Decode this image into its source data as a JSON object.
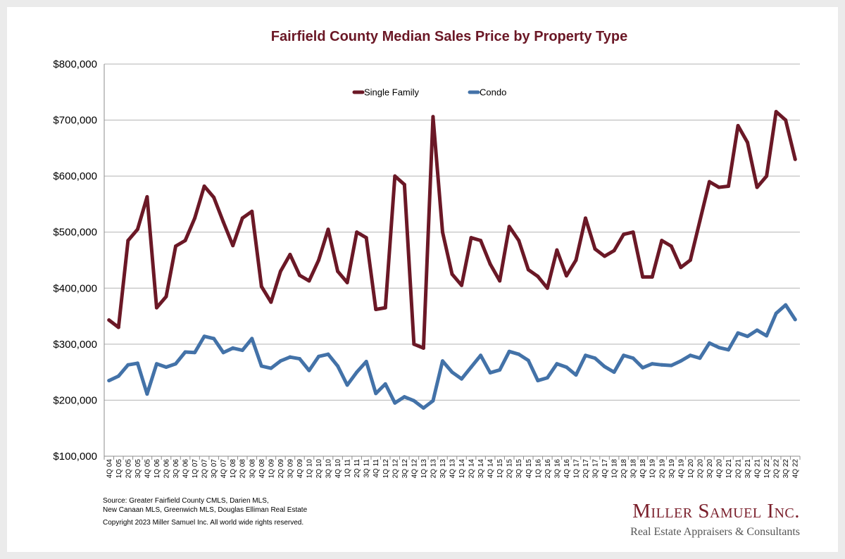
{
  "chart_data": {
    "type": "line",
    "title": "Fairfield County Median Sales Price by Property Type",
    "xlabel": "",
    "ylabel": "",
    "ylim": [
      100000,
      800000
    ],
    "yticks": [
      100000,
      200000,
      300000,
      400000,
      500000,
      600000,
      700000,
      800000
    ],
    "ytick_labels": [
      "$100,000",
      "$200,000",
      "$300,000",
      "$400,000",
      "$500,000",
      "$600,000",
      "$700,000",
      "$800,000"
    ],
    "grid": "horizontal",
    "legend": "top-center",
    "categories": [
      "4Q 04",
      "1Q 05",
      "2Q 05",
      "3Q 05",
      "4Q 05",
      "1Q 06",
      "2Q 06",
      "3Q 06",
      "4Q 06",
      "1Q 07",
      "2Q 07",
      "3Q 07",
      "4Q 07",
      "1Q 08",
      "2Q 08",
      "3Q 08",
      "4Q 08",
      "1Q 09",
      "2Q 09",
      "3Q 09",
      "4Q 09",
      "1Q 10",
      "2Q 10",
      "3Q 10",
      "4Q 10",
      "1Q 11",
      "2Q 11",
      "3Q 11",
      "4Q 11",
      "1Q 12",
      "2Q 12",
      "3Q 12",
      "4Q 12",
      "1Q 13",
      "2Q 13",
      "3Q 13",
      "4Q 13",
      "1Q 14",
      "2Q 14",
      "3Q 14",
      "4Q 14",
      "1Q 15",
      "2Q 15",
      "3Q 15",
      "4Q 15",
      "1Q 16",
      "2Q 16",
      "3Q 16",
      "4Q 16",
      "1Q 17",
      "2Q 17",
      "3Q 17",
      "4Q 17",
      "1Q 18",
      "2Q 18",
      "3Q 18",
      "4Q 18",
      "1Q 19",
      "2Q 19",
      "3Q 19",
      "4Q 19",
      "1Q 20",
      "2Q 20",
      "3Q 20",
      "4Q 20",
      "1Q 21",
      "2Q 21",
      "3Q 21",
      "4Q 21",
      "1Q 22",
      "2Q 22",
      "3Q 22",
      "4Q 22"
    ],
    "series": [
      {
        "name": "Single Family",
        "color": "#6b1826",
        "values": [
          343000,
          330000,
          485000,
          505000,
          563000,
          365000,
          385000,
          475000,
          485000,
          525000,
          582000,
          562000,
          518000,
          476000,
          525000,
          537000,
          403000,
          375000,
          430000,
          460000,
          423000,
          413000,
          450000,
          505000,
          430000,
          410000,
          500000,
          490000,
          362000,
          365000,
          600000,
          585000,
          300000,
          293000,
          706000,
          500000,
          425000,
          405000,
          490000,
          485000,
          443000,
          413000,
          510000,
          485000,
          433000,
          421000,
          400000,
          468000,
          422000,
          450000,
          525000,
          470000,
          457000,
          467000,
          496000,
          500000,
          420000,
          420000,
          485000,
          475000,
          437000,
          450000,
          520000,
          590000,
          580000,
          582000,
          690000,
          660000,
          580000,
          600000,
          715000,
          700000,
          630000
        ]
      },
      {
        "name": "Condo",
        "color": "#4372a8",
        "values": [
          235000,
          243000,
          263000,
          266000,
          211000,
          265000,
          259000,
          265000,
          286000,
          285000,
          314000,
          310000,
          285000,
          293000,
          289000,
          310000,
          261000,
          257000,
          270000,
          277000,
          274000,
          253000,
          278000,
          282000,
          261000,
          227000,
          250000,
          269000,
          212000,
          229000,
          195000,
          206000,
          199000,
          186000,
          199000,
          270000,
          250000,
          238000,
          259000,
          280000,
          249000,
          254000,
          287000,
          282000,
          271000,
          235000,
          240000,
          265000,
          259000,
          245000,
          280000,
          275000,
          260000,
          250000,
          280000,
          275000,
          258000,
          265000,
          263000,
          262000,
          270000,
          280000,
          275000,
          302000,
          294000,
          290000,
          320000,
          314000,
          325000,
          315000,
          355000,
          370000,
          344000
        ]
      }
    ]
  },
  "footer": {
    "source_line1": "Source:  Greater Fairfield County CMLS, Darien MLS,",
    "source_line2": "New Canaan MLS, Greenwich MLS, Douglas Elliman Real Estate",
    "copyright": "Copyright 2023 Miller Samuel Inc.  All world wide rights reserved."
  },
  "brand": {
    "name": "Miller Samuel Inc.",
    "tagline": "Real Estate Appraisers & Consultants"
  }
}
